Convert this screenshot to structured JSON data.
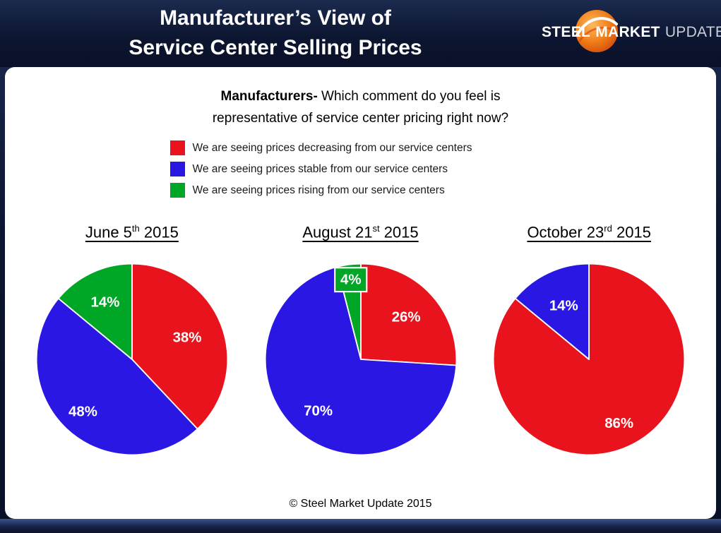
{
  "header": {
    "title_line1": "Manufacturer’s View of",
    "title_line2": "Service Center Selling Prices",
    "logo": {
      "steel": "STEEL",
      "market": "MARKET",
      "update": "UPDATE"
    }
  },
  "question": {
    "bold": "Manufacturers-",
    "line1_rest": " Which comment do you feel is",
    "line2": "representative of service center pricing right now?"
  },
  "legend": {
    "items": [
      {
        "color": "#e8131c",
        "text": "We are seeing prices decreasing from our service centers"
      },
      {
        "color": "#2a17e4",
        "text": "We are seeing prices stable from our service centers"
      },
      {
        "color": "#00a626",
        "text": "We are seeing prices rising from our service centers"
      }
    ]
  },
  "chart_data": [
    {
      "type": "pie",
      "title": {
        "pre": "June 5",
        "sup": "th",
        "post": " 2015"
      },
      "start_angle_deg": 0,
      "direction": "clockwise",
      "slices": [
        {
          "label": "38%",
          "value": 38,
          "color": "#e8131c",
          "label_r": 0.62
        },
        {
          "label": "48%",
          "value": 48,
          "color": "#2a17e4",
          "label_r": 0.75
        },
        {
          "label": "14%",
          "value": 14,
          "color": "#00a626",
          "label_r": 0.66
        }
      ]
    },
    {
      "type": "pie",
      "title": {
        "pre": "August 21",
        "sup": "st",
        "post": " 2015"
      },
      "start_angle_deg": 0,
      "direction": "clockwise",
      "slices": [
        {
          "label": "26%",
          "value": 26,
          "color": "#e8131c",
          "label_r": 0.65
        },
        {
          "label": "70%",
          "value": 70,
          "color": "#2a17e4",
          "label_r": 0.7
        },
        {
          "label": "4%",
          "value": 4,
          "color": "#00a626",
          "label_r": 0.84,
          "label_bg": "#00a626"
        }
      ]
    },
    {
      "type": "pie",
      "title": {
        "pre": "October 23",
        "sup": "rd",
        "post": " 2015"
      },
      "start_angle_deg": 0,
      "direction": "clockwise",
      "slices": [
        {
          "label": "86%",
          "value": 86,
          "color": "#e8131c",
          "label_r": 0.74
        },
        {
          "label": "14%",
          "value": 14,
          "color": "#2a17e4",
          "label_r": 0.62
        }
      ]
    }
  ],
  "footer": {
    "copyright": "© Steel Market Update 2015"
  }
}
